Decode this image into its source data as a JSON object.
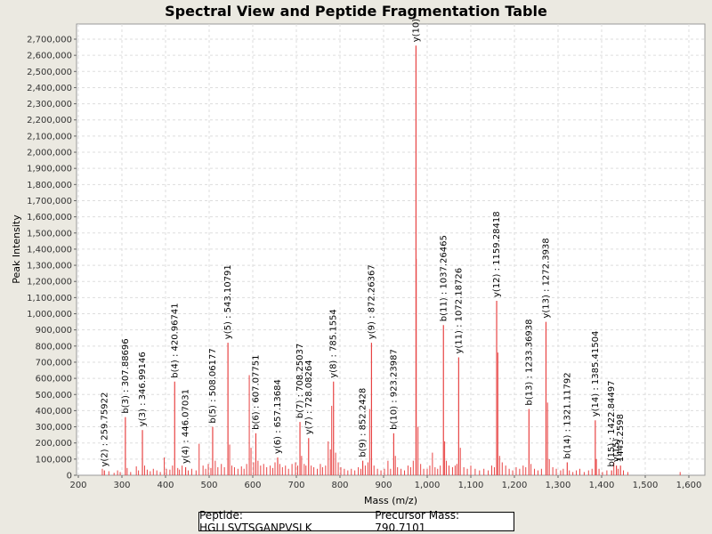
{
  "chart_data": {
    "type": "bar",
    "title": "Spectral View and Peptide Fragmentation Table",
    "xlabel": "Mass (m/z)",
    "ylabel": "Peak Intensity",
    "xlim": [
      200,
      1650
    ],
    "ylim": [
      0,
      2800000
    ],
    "x_ticks": [
      "200",
      "300",
      "400",
      "500",
      "600",
      "700",
      "800",
      "900",
      "1,000",
      "1,100",
      "1,200",
      "1,300",
      "1,400",
      "1,500",
      "1,600"
    ],
    "y_ticks": [
      "0",
      "100,000",
      "200,000",
      "300,000",
      "400,000",
      "500,000",
      "600,000",
      "700,000",
      "800,000",
      "900,000",
      "1,000,000",
      "1,100,000",
      "1,200,000",
      "1,300,000",
      "1,400,000",
      "1,500,000",
      "1,600,000",
      "1,700,000",
      "1,800,000",
      "1,900,000",
      "2,000,000",
      "2,100,000",
      "2,200,000",
      "2,300,000",
      "2,400,000",
      "2,500,000",
      "2,600,000",
      "2,700,000"
    ],
    "peak_color": "#e84444",
    "annotated_peaks": [
      {
        "mz": 259.7592,
        "intensity": 30000,
        "label": "y(2) : 259.75922"
      },
      {
        "mz": 307.887,
        "intensity": 360000,
        "label": "b(3) : 307.88696"
      },
      {
        "mz": 346.9915,
        "intensity": 280000,
        "label": "y(3) : 346.99146"
      },
      {
        "mz": 420.9674,
        "intensity": 580000,
        "label": "b(4) : 420.96741"
      },
      {
        "mz": 446.0703,
        "intensity": 50000,
        "label": "y(4) : 446.07031"
      },
      {
        "mz": 508.0618,
        "intensity": 300000,
        "label": "b(5) : 508.06177"
      },
      {
        "mz": 543.1079,
        "intensity": 820000,
        "label": "y(5) : 543.10791"
      },
      {
        "mz": 607.0775,
        "intensity": 260000,
        "label": "b(6) : 607.07751"
      },
      {
        "mz": 657.1368,
        "intensity": 110000,
        "label": "y(6) : 657.13684"
      },
      {
        "mz": 708.2504,
        "intensity": 330000,
        "label": "b(7) : 708.25037"
      },
      {
        "mz": 728.0826,
        "intensity": 230000,
        "label": "y(7) : 728.08264"
      },
      {
        "mz": 785.1554,
        "intensity": 580000,
        "label": "y(8) : 785.1554"
      },
      {
        "mz": 852.2428,
        "intensity": 90000,
        "label": "b(9) : 852.2428"
      },
      {
        "mz": 872.2637,
        "intensity": 820000,
        "label": "y(9) : 872.26367"
      },
      {
        "mz": 923.2399,
        "intensity": 260000,
        "label": "b(10) : 923.23987"
      },
      {
        "mz": 974.29,
        "intensity": 2660000,
        "label": "y(10)"
      },
      {
        "mz": 1037.2647,
        "intensity": 930000,
        "label": "b(11) : 1037.26465"
      },
      {
        "mz": 1072.1873,
        "intensity": 730000,
        "label": "y(11) : 1072.18726"
      },
      {
        "mz": 1159.2842,
        "intensity": 1080000,
        "label": "y(12) : 1159.28418"
      },
      {
        "mz": 1233.3694,
        "intensity": 410000,
        "label": "b(13) : 1233.36938"
      },
      {
        "mz": 1272.3938,
        "intensity": 950000,
        "label": "y(13) : 1272.3938"
      },
      {
        "mz": 1321.1179,
        "intensity": 80000,
        "label": "b(14) : 1321.11792"
      },
      {
        "mz": 1385.415,
        "intensity": 340000,
        "label": "y(14) : 1385.41504"
      },
      {
        "mz": 1422.845,
        "intensity": 30000,
        "label": "b(15) : 1422.84497"
      },
      {
        "mz": 1433.9,
        "intensity": 60000,
        "label": "y(15)"
      },
      {
        "mz": 1443.26,
        "intensity": 60000,
        "label": "1443.2598"
      }
    ],
    "minor_peaks": [
      [
        255,
        40000
      ],
      [
        270,
        25000
      ],
      [
        282,
        15000
      ],
      [
        290,
        30000
      ],
      [
        296,
        20000
      ],
      [
        312,
        45000
      ],
      [
        320,
        20000
      ],
      [
        333,
        55000
      ],
      [
        338,
        30000
      ],
      [
        352,
        60000
      ],
      [
        358,
        35000
      ],
      [
        365,
        25000
      ],
      [
        372,
        40000
      ],
      [
        380,
        30000
      ],
      [
        388,
        20000
      ],
      [
        397,
        110000
      ],
      [
        402,
        40000
      ],
      [
        410,
        35000
      ],
      [
        416,
        60000
      ],
      [
        428,
        45000
      ],
      [
        432,
        35000
      ],
      [
        438,
        60000
      ],
      [
        452,
        30000
      ],
      [
        460,
        40000
      ],
      [
        470,
        30000
      ],
      [
        477,
        195000
      ],
      [
        486,
        60000
      ],
      [
        492,
        40000
      ],
      [
        498,
        70000
      ],
      [
        504,
        45000
      ],
      [
        514,
        90000
      ],
      [
        520,
        50000
      ],
      [
        528,
        70000
      ],
      [
        535,
        50000
      ],
      [
        547,
        190000
      ],
      [
        552,
        60000
      ],
      [
        558,
        50000
      ],
      [
        566,
        40000
      ],
      [
        574,
        55000
      ],
      [
        580,
        40000
      ],
      [
        586,
        70000
      ],
      [
        592,
        620000
      ],
      [
        596,
        170000
      ],
      [
        602,
        80000
      ],
      [
        612,
        90000
      ],
      [
        618,
        60000
      ],
      [
        625,
        70000
      ],
      [
        632,
        50000
      ],
      [
        640,
        60000
      ],
      [
        646,
        45000
      ],
      [
        651,
        80000
      ],
      [
        662,
        70000
      ],
      [
        668,
        50000
      ],
      [
        675,
        60000
      ],
      [
        682,
        40000
      ],
      [
        690,
        70000
      ],
      [
        698,
        80000
      ],
      [
        703,
        60000
      ],
      [
        712,
        120000
      ],
      [
        718,
        70000
      ],
      [
        722,
        60000
      ],
      [
        734,
        60000
      ],
      [
        740,
        50000
      ],
      [
        748,
        40000
      ],
      [
        755,
        70000
      ],
      [
        760,
        50000
      ],
      [
        767,
        60000
      ],
      [
        773,
        210000
      ],
      [
        778,
        160000
      ],
      [
        781,
        430000
      ],
      [
        790,
        140000
      ],
      [
        796,
        80000
      ],
      [
        802,
        50000
      ],
      [
        810,
        40000
      ],
      [
        818,
        30000
      ],
      [
        826,
        40000
      ],
      [
        834,
        30000
      ],
      [
        842,
        50000
      ],
      [
        848,
        40000
      ],
      [
        858,
        60000
      ],
      [
        864,
        80000
      ],
      [
        868,
        410000
      ],
      [
        878,
        60000
      ],
      [
        886,
        40000
      ],
      [
        894,
        30000
      ],
      [
        902,
        40000
      ],
      [
        910,
        90000
      ],
      [
        916,
        40000
      ],
      [
        927,
        120000
      ],
      [
        932,
        50000
      ],
      [
        940,
        40000
      ],
      [
        948,
        30000
      ],
      [
        956,
        60000
      ],
      [
        962,
        50000
      ],
      [
        968,
        90000
      ],
      [
        975,
        1340000
      ],
      [
        979,
        300000
      ],
      [
        985,
        70000
      ],
      [
        992,
        40000
      ],
      [
        1000,
        40000
      ],
      [
        1006,
        60000
      ],
      [
        1012,
        140000
      ],
      [
        1018,
        50000
      ],
      [
        1024,
        40000
      ],
      [
        1030,
        60000
      ],
      [
        1040,
        210000
      ],
      [
        1044,
        90000
      ],
      [
        1050,
        60000
      ],
      [
        1058,
        50000
      ],
      [
        1064,
        60000
      ],
      [
        1068,
        70000
      ],
      [
        1076,
        170000
      ],
      [
        1084,
        50000
      ],
      [
        1092,
        40000
      ],
      [
        1100,
        60000
      ],
      [
        1110,
        40000
      ],
      [
        1120,
        30000
      ],
      [
        1130,
        40000
      ],
      [
        1140,
        30000
      ],
      [
        1148,
        60000
      ],
      [
        1154,
        50000
      ],
      [
        1162,
        760000
      ],
      [
        1166,
        120000
      ],
      [
        1172,
        80000
      ],
      [
        1180,
        60000
      ],
      [
        1188,
        40000
      ],
      [
        1196,
        30000
      ],
      [
        1204,
        50000
      ],
      [
        1212,
        40000
      ],
      [
        1220,
        60000
      ],
      [
        1226,
        50000
      ],
      [
        1238,
        70000
      ],
      [
        1246,
        40000
      ],
      [
        1254,
        30000
      ],
      [
        1262,
        40000
      ],
      [
        1276,
        450000
      ],
      [
        1280,
        100000
      ],
      [
        1288,
        50000
      ],
      [
        1296,
        40000
      ],
      [
        1306,
        30000
      ],
      [
        1312,
        40000
      ],
      [
        1326,
        30000
      ],
      [
        1334,
        20000
      ],
      [
        1342,
        30000
      ],
      [
        1350,
        40000
      ],
      [
        1360,
        20000
      ],
      [
        1370,
        30000
      ],
      [
        1378,
        40000
      ],
      [
        1388,
        100000
      ],
      [
        1394,
        40000
      ],
      [
        1402,
        20000
      ],
      [
        1412,
        30000
      ],
      [
        1428,
        80000
      ],
      [
        1438,
        40000
      ],
      [
        1450,
        30000
      ],
      [
        1460,
        20000
      ],
      [
        1580,
        20000
      ]
    ]
  },
  "legend": {
    "peptide": "Peptide: HGLLSVTSGANPVSLK",
    "precursor": "Precursor Mass: 790.7101"
  }
}
